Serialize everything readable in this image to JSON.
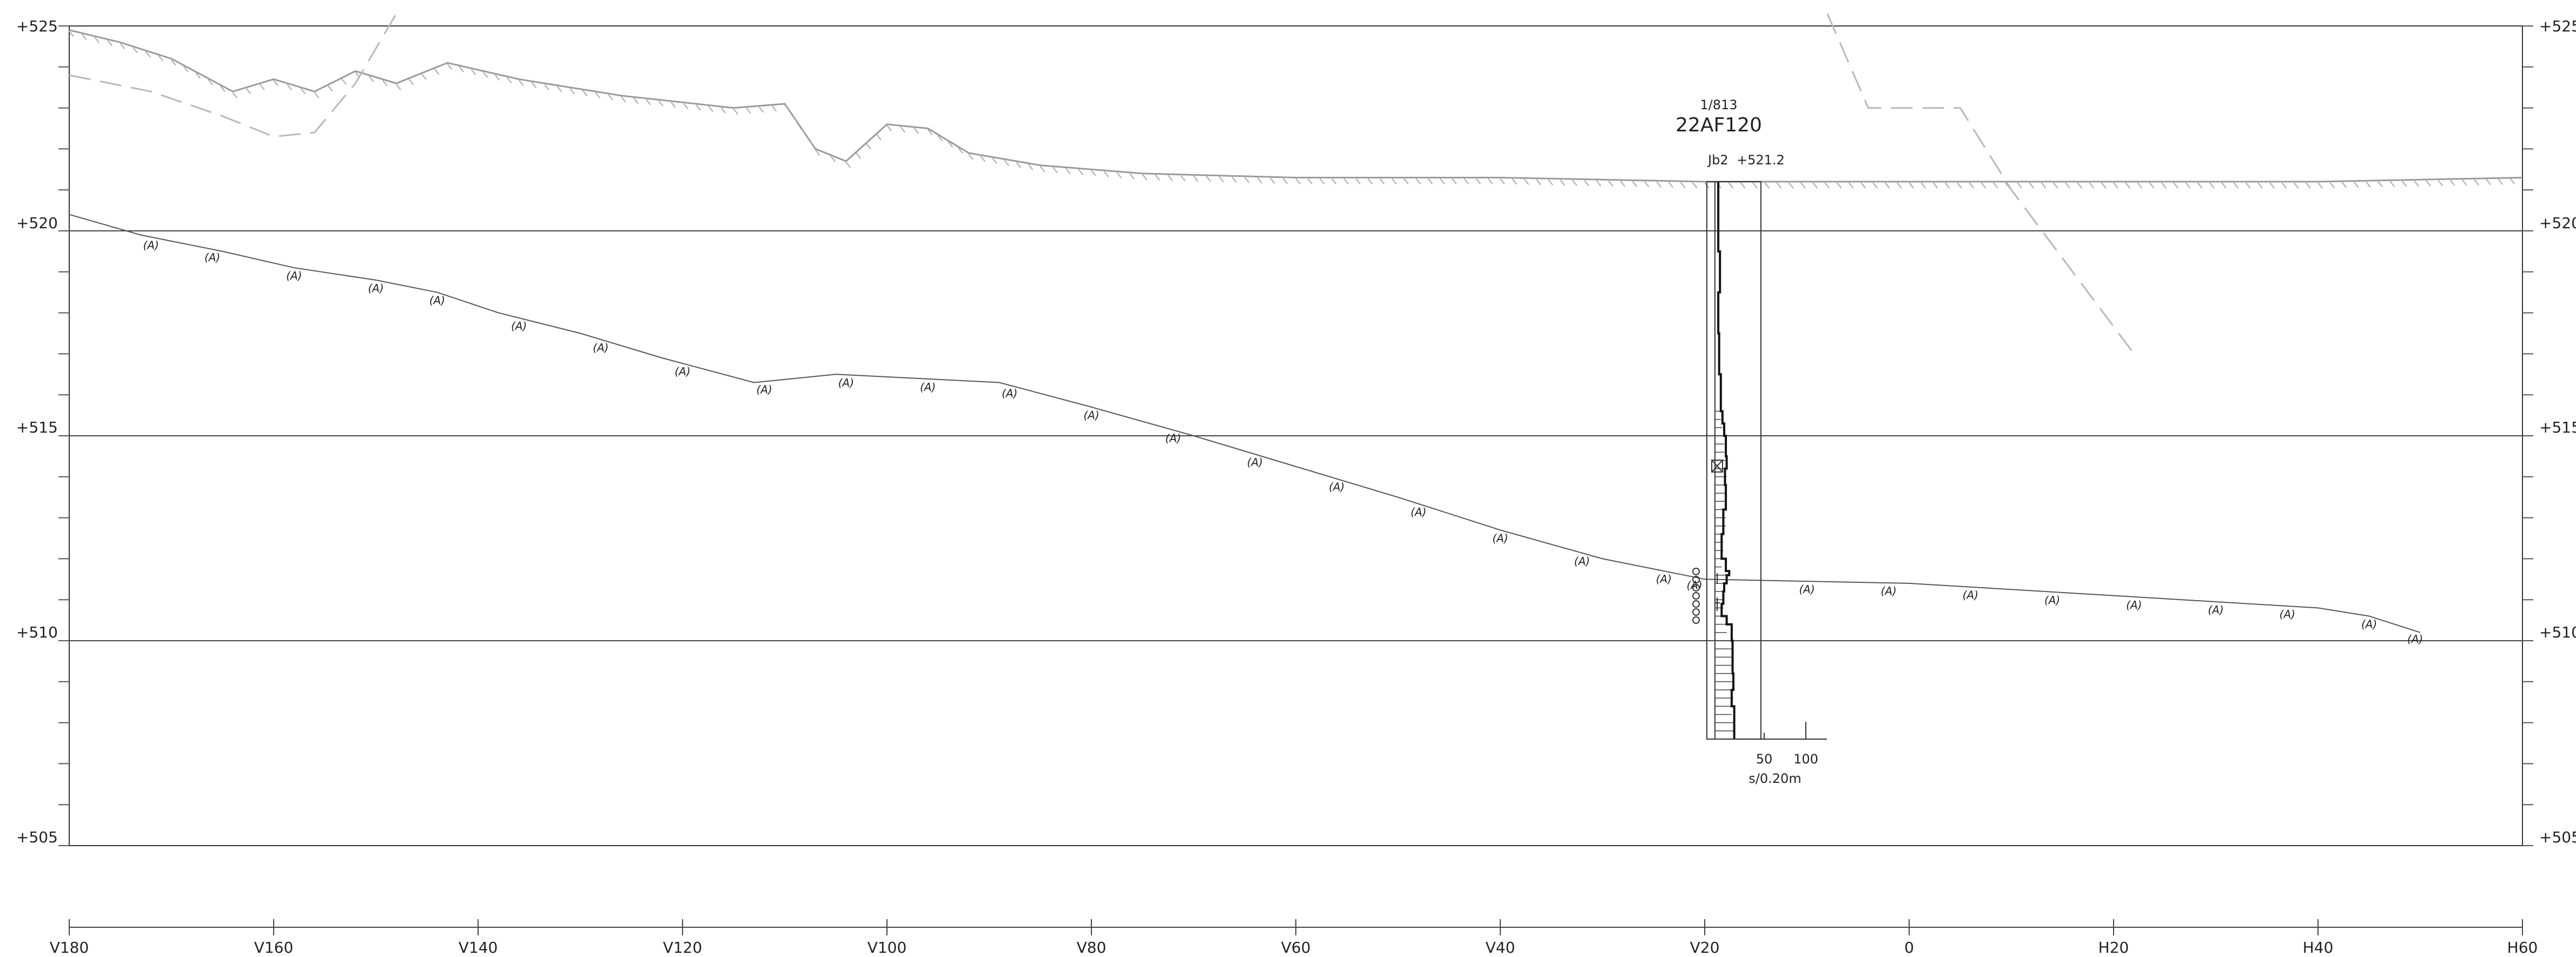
{
  "section": {
    "elevation_labels": [
      "+525",
      "+520",
      "+515",
      "+510",
      "+505"
    ],
    "elevations": [
      525,
      520,
      515,
      510,
      505
    ],
    "station_labels": [
      "V180",
      "V160",
      "V140",
      "V120",
      "V100",
      "V80",
      "V60",
      "V40",
      "V20",
      "0",
      "H20",
      "H40",
      "H60"
    ],
    "stations": [
      -180,
      -160,
      -140,
      -120,
      -100,
      -80,
      -60,
      -40,
      -20,
      0,
      20,
      40,
      60
    ],
    "terrain_symbol": "(A)",
    "terrain_line": [
      [
        -180,
        520.4
      ],
      [
        -173,
        519.9
      ],
      [
        -165,
        519.5
      ],
      [
        -158,
        519.1
      ],
      [
        -150,
        518.8
      ],
      [
        -144,
        518.5
      ],
      [
        -138,
        518.0
      ],
      [
        -130,
        517.5
      ],
      [
        -122,
        516.9
      ],
      [
        -113,
        516.3
      ],
      [
        -105,
        516.5
      ],
      [
        -97,
        516.4
      ],
      [
        -89,
        516.3
      ],
      [
        -80,
        515.7
      ],
      [
        -70,
        515.0
      ],
      [
        -62,
        514.4
      ],
      [
        -50,
        513.5
      ],
      [
        -40,
        512.7
      ],
      [
        -30,
        512.0
      ],
      [
        -22,
        511.6
      ],
      [
        -20,
        511.5
      ],
      [
        0,
        511.4
      ],
      [
        20,
        511.1
      ],
      [
        40,
        510.8
      ],
      [
        45,
        510.6
      ],
      [
        50,
        510.2
      ]
    ],
    "terrain_marker_stations": [
      -172,
      -166,
      -158,
      -150,
      -144,
      -136,
      -128,
      -120,
      -112,
      -104,
      -96,
      -88,
      -80,
      -72,
      -64,
      -56,
      -48,
      -40,
      -32,
      -24,
      -21,
      -10,
      -2,
      6,
      14,
      22,
      30,
      37,
      45,
      49.5
    ],
    "ground_surface_line": [
      [
        -180,
        524.9
      ],
      [
        -175,
        524.6
      ],
      [
        -170,
        524.2
      ],
      [
        -164,
        523.4
      ],
      [
        -160,
        523.7
      ],
      [
        -156,
        523.4
      ],
      [
        -152,
        523.9
      ],
      [
        -148,
        523.6
      ],
      [
        -143,
        524.1
      ],
      [
        -136,
        523.7
      ],
      [
        -126,
        523.3
      ],
      [
        -115,
        523.0
      ],
      [
        -110,
        523.1
      ],
      [
        -107,
        522.0
      ],
      [
        -104,
        521.7
      ],
      [
        -100,
        522.6
      ],
      [
        -96,
        522.5
      ],
      [
        -92,
        521.9
      ],
      [
        -85,
        521.6
      ],
      [
        -75,
        521.4
      ],
      [
        -60,
        521.3
      ],
      [
        -40,
        521.3
      ],
      [
        -20,
        521.2
      ],
      [
        0,
        521.2
      ],
      [
        20,
        521.2
      ],
      [
        40,
        521.2
      ],
      [
        60,
        521.3
      ]
    ],
    "dashed_line_left": [
      [
        -180,
        523.8
      ],
      [
        -172,
        523.4
      ],
      [
        -165,
        522.8
      ],
      [
        -160,
        522.3
      ],
      [
        -156,
        522.4
      ],
      [
        -152,
        523.6
      ],
      [
        -148,
        525.3
      ]
    ],
    "dashed_line_right": [
      [
        -8,
        525.3
      ],
      [
        -4,
        523.0
      ],
      [
        5,
        523.0
      ],
      [
        10,
        521.0
      ],
      [
        22,
        517.0
      ]
    ]
  },
  "borehole": {
    "id_top": "1/813",
    "name": "22AF120",
    "code": "Jb2",
    "elevation_text": "+521.2",
    "station": -19,
    "top_elevation": 521.2,
    "bottom_elevation": 507.6,
    "scale_labels": [
      "50",
      "100"
    ],
    "unit_label": "s/0.20m",
    "penetration_profile": [
      [
        521.2,
        4
      ],
      [
        519.5,
        4
      ],
      [
        518.5,
        6
      ],
      [
        517.5,
        4
      ],
      [
        516.5,
        5
      ],
      [
        515.6,
        7
      ],
      [
        515.3,
        9
      ],
      [
        515.0,
        11
      ],
      [
        514.5,
        13
      ],
      [
        514.2,
        14
      ],
      [
        513.8,
        12
      ],
      [
        513.2,
        13
      ],
      [
        512.6,
        10
      ],
      [
        512.0,
        8
      ],
      [
        511.7,
        13
      ],
      [
        511.6,
        17
      ],
      [
        511.4,
        14
      ],
      [
        511.2,
        11
      ],
      [
        510.9,
        10
      ],
      [
        510.6,
        8
      ],
      [
        510.4,
        14
      ],
      [
        510.0,
        20
      ],
      [
        509.6,
        21
      ],
      [
        509.2,
        21
      ],
      [
        508.8,
        22
      ],
      [
        508.4,
        20
      ],
      [
        508.0,
        23
      ],
      [
        507.6,
        23
      ]
    ]
  }
}
